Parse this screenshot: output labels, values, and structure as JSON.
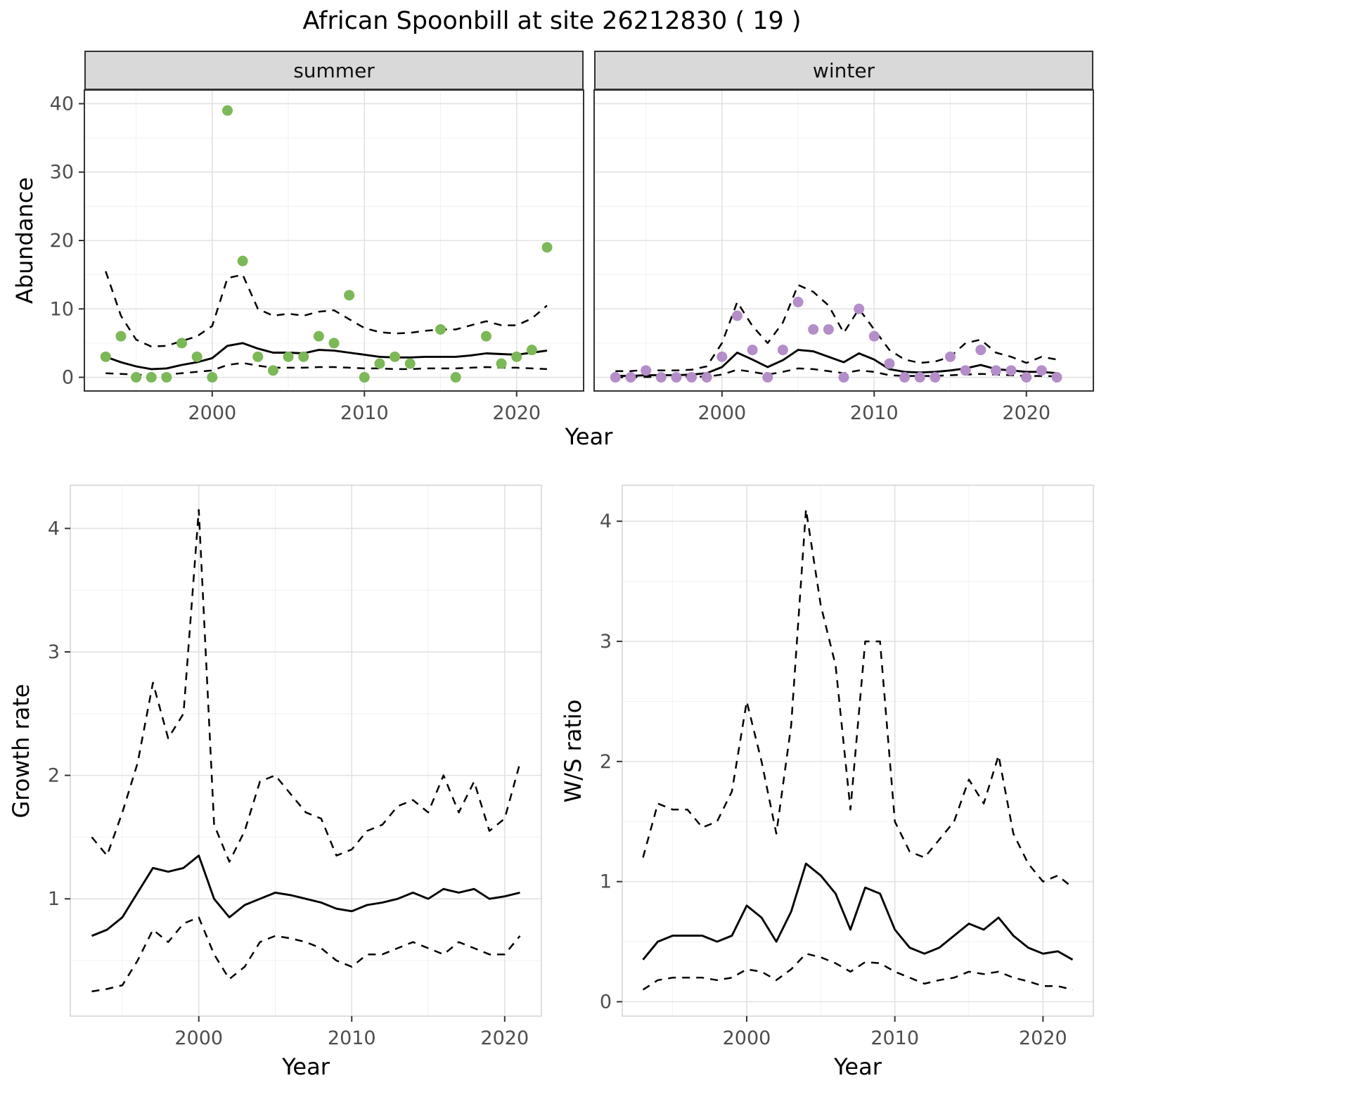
{
  "title": "African Spoonbill at site 26212830 ( 19 )",
  "labels": {
    "year": "Year",
    "abundance": "Abundance",
    "growth": "Growth rate",
    "ratio": "W/S ratio"
  },
  "colors": {
    "summer_point": "#7cb857",
    "winter_point": "#b48ec8",
    "line": "#000000",
    "strip_bg": "#d9d9d9",
    "panel_border_top": "#333333",
    "panel_border_bottom": "#cfcfcf",
    "grid_major": "#e2e2e2",
    "grid_minor": "#f1f1f1",
    "axis_text": "#4d4d4d",
    "tick_mark": "#333333"
  },
  "chart_data": [
    {
      "id": "abundance_summer",
      "type": "scatter",
      "facet_label": "summer",
      "xlabel": "Year",
      "ylabel": "Abundance",
      "point_color": "#7cb857",
      "xlim": [
        1991.6,
        2024.4
      ],
      "ylim": [
        -2,
        42
      ],
      "x_ticks": [
        2000,
        2010,
        2020
      ],
      "y_ticks": [
        0,
        10,
        20,
        30,
        40
      ],
      "line_x": [
        1993,
        1994,
        1995,
        1996,
        1997,
        1998,
        1999,
        2000,
        2001,
        2002,
        2003,
        2004,
        2005,
        2006,
        2007,
        2008,
        2009,
        2010,
        2011,
        2012,
        2013,
        2014,
        2015,
        2016,
        2017,
        2018,
        2019,
        2020,
        2021,
        2022
      ],
      "series": [
        {
          "name": "fit",
          "style": "solid",
          "y": [
            3.0,
            2.2,
            1.6,
            1.2,
            1.3,
            1.8,
            2.2,
            2.8,
            4.6,
            5.0,
            4.2,
            3.6,
            3.6,
            3.5,
            4.0,
            3.9,
            3.6,
            3.3,
            3.0,
            2.9,
            2.9,
            3.0,
            3.0,
            3.0,
            3.2,
            3.5,
            3.4,
            3.3,
            3.6,
            3.9
          ]
        },
        {
          "name": "upper_ci",
          "style": "dashed",
          "y": [
            15.5,
            9.0,
            5.5,
            4.5,
            4.6,
            5.3,
            6.0,
            7.5,
            14.5,
            15.0,
            10.0,
            9.0,
            9.3,
            9.0,
            9.6,
            9.8,
            8.5,
            7.2,
            6.6,
            6.4,
            6.5,
            6.8,
            7.0,
            7.0,
            7.6,
            8.2,
            7.6,
            7.6,
            8.6,
            10.5
          ]
        },
        {
          "name": "lower_ci",
          "style": "dashed",
          "y": [
            0.6,
            0.5,
            0.4,
            0.3,
            0.4,
            0.6,
            0.8,
            1.0,
            1.8,
            2.1,
            1.7,
            1.4,
            1.4,
            1.4,
            1.5,
            1.5,
            1.4,
            1.3,
            1.3,
            1.2,
            1.2,
            1.3,
            1.3,
            1.3,
            1.4,
            1.5,
            1.4,
            1.4,
            1.3,
            1.2
          ]
        }
      ],
      "points": {
        "x": [
          1993,
          1994,
          1995,
          1996,
          1997,
          1998,
          1999,
          2000,
          2001,
          2002,
          2003,
          2004,
          2005,
          2006,
          2007,
          2008,
          2009,
          2010,
          2011,
          2012,
          2013,
          2015,
          2016,
          2018,
          2019,
          2020,
          2021,
          2022
        ],
        "y": [
          3,
          6,
          0,
          0,
          0,
          5,
          3,
          0,
          39,
          17,
          3,
          1,
          3,
          3,
          6,
          5,
          12,
          0,
          2,
          3,
          2,
          7,
          0,
          6,
          2,
          3,
          4,
          19
        ]
      }
    },
    {
      "id": "abundance_winter",
      "type": "scatter",
      "facet_label": "winter",
      "xlabel": "Year",
      "ylabel": "Abundance",
      "point_color": "#b48ec8",
      "xlim": [
        1991.6,
        2024.4
      ],
      "ylim": [
        -2,
        42
      ],
      "x_ticks": [
        2000,
        2010,
        2020
      ],
      "y_ticks": [
        0,
        10,
        20,
        30,
        40
      ],
      "line_x": [
        1993,
        1994,
        1995,
        1996,
        1997,
        1998,
        1999,
        2000,
        2001,
        2002,
        2003,
        2004,
        2005,
        2006,
        2007,
        2008,
        2009,
        2010,
        2011,
        2012,
        2013,
        2014,
        2015,
        2016,
        2017,
        2018,
        2019,
        2020,
        2021,
        2022
      ],
      "series": [
        {
          "name": "fit",
          "style": "solid",
          "y": [
            0.2,
            0.2,
            0.3,
            0.3,
            0.3,
            0.4,
            0.6,
            1.5,
            3.6,
            2.6,
            1.5,
            2.5,
            4.0,
            3.8,
            3.0,
            2.2,
            3.5,
            2.6,
            1.2,
            0.8,
            0.7,
            0.8,
            1.0,
            1.3,
            1.8,
            1.2,
            1.0,
            0.8,
            0.8,
            0.6
          ]
        },
        {
          "name": "upper_ci",
          "style": "dashed",
          "y": [
            0.9,
            0.9,
            1.1,
            1.0,
            1.0,
            1.1,
            1.6,
            5.0,
            11.0,
            7.5,
            5.0,
            8.0,
            13.5,
            12.5,
            10.5,
            6.5,
            10.0,
            7.0,
            4.0,
            2.6,
            2.1,
            2.3,
            3.0,
            5.0,
            5.5,
            3.6,
            3.0,
            2.1,
            3.0,
            2.6
          ]
        },
        {
          "name": "lower_ci",
          "style": "dashed",
          "y": [
            0.0,
            0.0,
            0.05,
            0.05,
            0.05,
            0.1,
            0.1,
            0.4,
            1.1,
            0.8,
            0.4,
            0.8,
            1.3,
            1.2,
            0.9,
            0.6,
            1.0,
            0.8,
            0.3,
            0.2,
            0.2,
            0.2,
            0.3,
            0.4,
            0.5,
            0.4,
            0.3,
            0.2,
            0.2,
            0.15
          ]
        }
      ],
      "points": {
        "x": [
          1993,
          1994,
          1995,
          1996,
          1997,
          1998,
          1999,
          2000,
          2001,
          2002,
          2003,
          2004,
          2005,
          2006,
          2007,
          2008,
          2009,
          2010,
          2011,
          2012,
          2013,
          2014,
          2015,
          2016,
          2017,
          2018,
          2019,
          2020,
          2021,
          2022
        ],
        "y": [
          0,
          0,
          1,
          0,
          0,
          0,
          0,
          3,
          9,
          4,
          0,
          4,
          11,
          7,
          7,
          0,
          10,
          6,
          2,
          0,
          0,
          0,
          3,
          1,
          4,
          1,
          1,
          0,
          1,
          0
        ]
      }
    },
    {
      "id": "growth_rate",
      "type": "line",
      "xlabel": "Year",
      "ylabel": "Growth rate",
      "xlim": [
        1991.6,
        2022.4
      ],
      "ylim": [
        0.05,
        4.35
      ],
      "x_ticks": [
        2000,
        2010,
        2020
      ],
      "y_ticks": [
        1,
        2,
        3,
        4
      ],
      "line_x": [
        1993,
        1994,
        1995,
        1996,
        1997,
        1998,
        1999,
        2000,
        2001,
        2002,
        2003,
        2004,
        2005,
        2006,
        2007,
        2008,
        2009,
        2010,
        2011,
        2012,
        2013,
        2014,
        2015,
        2016,
        2017,
        2018,
        2019,
        2020,
        2021
      ],
      "series": [
        {
          "name": "fit",
          "style": "solid",
          "y": [
            0.7,
            0.75,
            0.85,
            1.05,
            1.25,
            1.22,
            1.25,
            1.35,
            1.0,
            0.85,
            0.95,
            1.0,
            1.05,
            1.03,
            1.0,
            0.97,
            0.92,
            0.9,
            0.95,
            0.97,
            1.0,
            1.05,
            1.0,
            1.08,
            1.05,
            1.08,
            1.0,
            1.02,
            1.05
          ]
        },
        {
          "name": "upper_ci",
          "style": "dashed",
          "y": [
            1.5,
            1.35,
            1.7,
            2.1,
            2.75,
            2.3,
            2.5,
            4.15,
            1.6,
            1.3,
            1.55,
            1.95,
            2.0,
            1.85,
            1.7,
            1.65,
            1.35,
            1.4,
            1.55,
            1.6,
            1.75,
            1.8,
            1.7,
            2.0,
            1.7,
            1.95,
            1.55,
            1.65,
            2.1
          ]
        },
        {
          "name": "lower_ci",
          "style": "dashed",
          "y": [
            0.25,
            0.27,
            0.3,
            0.5,
            0.75,
            0.65,
            0.8,
            0.85,
            0.55,
            0.35,
            0.45,
            0.65,
            0.7,
            0.68,
            0.65,
            0.6,
            0.5,
            0.45,
            0.55,
            0.55,
            0.6,
            0.65,
            0.6,
            0.55,
            0.65,
            0.6,
            0.55,
            0.55,
            0.7
          ]
        }
      ]
    },
    {
      "id": "ws_ratio",
      "type": "line",
      "xlabel": "Year",
      "ylabel": "W/S ratio",
      "xlim": [
        1991.6,
        2023.4
      ],
      "ylim": [
        -0.12,
        4.3
      ],
      "x_ticks": [
        2000,
        2010,
        2020
      ],
      "y_ticks": [
        0,
        1,
        2,
        3,
        4
      ],
      "line_x": [
        1993,
        1994,
        1995,
        1996,
        1997,
        1998,
        1999,
        2000,
        2001,
        2002,
        2003,
        2004,
        2005,
        2006,
        2007,
        2008,
        2009,
        2010,
        2011,
        2012,
        2013,
        2014,
        2015,
        2016,
        2017,
        2018,
        2019,
        2020,
        2021,
        2022
      ],
      "series": [
        {
          "name": "fit",
          "style": "solid",
          "y": [
            0.35,
            0.5,
            0.55,
            0.55,
            0.55,
            0.5,
            0.55,
            0.8,
            0.7,
            0.5,
            0.75,
            1.15,
            1.05,
            0.9,
            0.6,
            0.95,
            0.9,
            0.6,
            0.45,
            0.4,
            0.45,
            0.55,
            0.65,
            0.6,
            0.7,
            0.55,
            0.45,
            0.4,
            0.42,
            0.35
          ]
        },
        {
          "name": "upper_ci",
          "style": "dashed",
          "y": [
            1.2,
            1.65,
            1.6,
            1.6,
            1.45,
            1.5,
            1.75,
            2.5,
            2.0,
            1.4,
            2.3,
            4.1,
            3.3,
            2.8,
            1.6,
            3.0,
            3.0,
            1.5,
            1.25,
            1.2,
            1.35,
            1.5,
            1.85,
            1.65,
            2.05,
            1.4,
            1.15,
            1.0,
            1.05,
            0.95
          ]
        },
        {
          "name": "lower_ci",
          "style": "dashed",
          "y": [
            0.1,
            0.18,
            0.2,
            0.2,
            0.2,
            0.18,
            0.2,
            0.27,
            0.25,
            0.18,
            0.27,
            0.4,
            0.37,
            0.32,
            0.25,
            0.33,
            0.32,
            0.25,
            0.2,
            0.15,
            0.18,
            0.2,
            0.25,
            0.23,
            0.25,
            0.2,
            0.17,
            0.13,
            0.13,
            0.1
          ]
        }
      ]
    }
  ]
}
